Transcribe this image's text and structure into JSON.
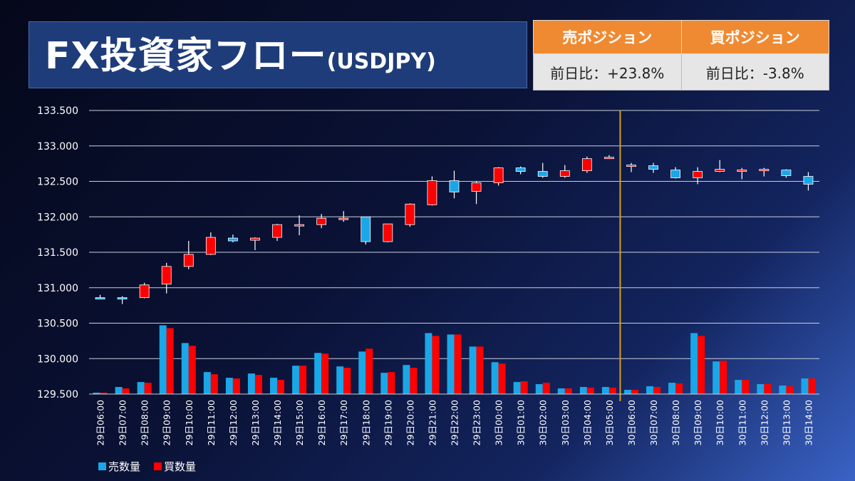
{
  "header": {
    "title": "FX投資家フロー",
    "pair": "(USDJPY)"
  },
  "positions": {
    "sell_header": "売ポジション",
    "buy_header": "買ポジション",
    "sell_change": "前日比：+23.8%",
    "buy_change": "前日比：-3.8%"
  },
  "colors": {
    "up": "#ff0000",
    "down": "#1aa7e8",
    "sell_bar": "#1aa7e8",
    "buy_bar": "#ff0000",
    "header_orange": "#f08a32",
    "divider": "#d4a017"
  },
  "chart_data": {
    "type": "candlestick_with_bars",
    "ylim": [
      129.5,
      133.5
    ],
    "yticks": [
      "133.500",
      "133.000",
      "132.500",
      "132.000",
      "131.500",
      "131.000",
      "130.500",
      "130.000",
      "129.500"
    ],
    "ytick_values": [
      133.5,
      133.0,
      132.5,
      132.0,
      131.5,
      131.0,
      130.5,
      130.0,
      129.5
    ],
    "grid": true,
    "divider_after": "30日05:00",
    "legend": {
      "position": "bottom-left",
      "sell_label": "売数量",
      "buy_label": "買数量"
    },
    "candles": [
      {
        "x": "29日06:00",
        "o": 130.86,
        "h": 130.9,
        "l": 130.84,
        "c": 130.85
      },
      {
        "x": "29日07:00",
        "o": 130.86,
        "h": 130.88,
        "l": 130.77,
        "c": 130.85
      },
      {
        "x": "29日08:00",
        "o": 130.86,
        "h": 131.07,
        "l": 130.85,
        "c": 131.04
      },
      {
        "x": "29日09:00",
        "o": 131.05,
        "h": 131.35,
        "l": 130.92,
        "c": 131.3
      },
      {
        "x": "29日10:00",
        "o": 131.3,
        "h": 131.66,
        "l": 131.26,
        "c": 131.47
      },
      {
        "x": "29日11:00",
        "o": 131.47,
        "h": 131.78,
        "l": 131.46,
        "c": 131.71
      },
      {
        "x": "29日12:00",
        "o": 131.7,
        "h": 131.75,
        "l": 131.64,
        "c": 131.66
      },
      {
        "x": "29日13:00",
        "o": 131.67,
        "h": 131.71,
        "l": 131.53,
        "c": 131.7
      },
      {
        "x": "29日14:00",
        "o": 131.71,
        "h": 131.9,
        "l": 131.66,
        "c": 131.89
      },
      {
        "x": "29日15:00",
        "o": 131.89,
        "h": 132.02,
        "l": 131.74,
        "c": 131.89
      },
      {
        "x": "29日16:00",
        "o": 131.89,
        "h": 132.04,
        "l": 131.84,
        "c": 131.98
      },
      {
        "x": "29日17:00",
        "o": 131.96,
        "h": 132.08,
        "l": 131.93,
        "c": 131.98
      },
      {
        "x": "29日18:00",
        "o": 132.0,
        "h": 132.0,
        "l": 131.61,
        "c": 131.65
      },
      {
        "x": "29日19:00",
        "o": 131.65,
        "h": 131.9,
        "l": 131.64,
        "c": 131.9
      },
      {
        "x": "29日20:00",
        "o": 131.89,
        "h": 132.19,
        "l": 131.86,
        "c": 132.18
      },
      {
        "x": "29日21:00",
        "o": 132.17,
        "h": 132.57,
        "l": 132.16,
        "c": 132.51
      },
      {
        "x": "29日22:00",
        "o": 132.51,
        "h": 132.65,
        "l": 132.26,
        "c": 132.35
      },
      {
        "x": "29日23:00",
        "o": 132.36,
        "h": 132.5,
        "l": 132.18,
        "c": 132.48
      },
      {
        "x": "30日00:00",
        "o": 132.48,
        "h": 132.7,
        "l": 132.44,
        "c": 132.69
      },
      {
        "x": "30日01:00",
        "o": 132.69,
        "h": 132.71,
        "l": 132.6,
        "c": 132.64
      },
      {
        "x": "30日02:00",
        "o": 132.64,
        "h": 132.76,
        "l": 132.55,
        "c": 132.57
      },
      {
        "x": "30日03:00",
        "o": 132.57,
        "h": 132.73,
        "l": 132.55,
        "c": 132.65
      },
      {
        "x": "30日04:00",
        "o": 132.65,
        "h": 132.85,
        "l": 132.62,
        "c": 132.82
      },
      {
        "x": "30日05:00",
        "o": 132.82,
        "h": 132.87,
        "l": 132.82,
        "c": 132.84
      },
      {
        "x": "30日06:00",
        "o": 132.71,
        "h": 132.76,
        "l": 132.63,
        "c": 132.73
      },
      {
        "x": "30日07:00",
        "o": 132.72,
        "h": 132.76,
        "l": 132.62,
        "c": 132.67
      },
      {
        "x": "30日08:00",
        "o": 132.66,
        "h": 132.7,
        "l": 132.54,
        "c": 132.55
      },
      {
        "x": "30日09:00",
        "o": 132.55,
        "h": 132.7,
        "l": 132.46,
        "c": 132.64
      },
      {
        "x": "30日10:00",
        "o": 132.64,
        "h": 132.8,
        "l": 132.63,
        "c": 132.67
      },
      {
        "x": "30日11:00",
        "o": 132.66,
        "h": 132.69,
        "l": 132.53,
        "c": 132.66
      },
      {
        "x": "30日12:00",
        "o": 132.65,
        "h": 132.69,
        "l": 132.57,
        "c": 132.67
      },
      {
        "x": "30日13:00",
        "o": 132.66,
        "h": 132.67,
        "l": 132.55,
        "c": 132.58
      },
      {
        "x": "30日14:00",
        "o": 132.57,
        "h": 132.63,
        "l": 132.37,
        "c": 132.46
      }
    ],
    "sell_volume": [
      129.52,
      129.6,
      129.67,
      130.47,
      130.22,
      129.81,
      129.73,
      129.79,
      129.73,
      129.9,
      130.08,
      129.89,
      130.1,
      129.8,
      129.91,
      130.36,
      130.34,
      130.17,
      129.95,
      129.67,
      129.64,
      129.58,
      129.6,
      129.6,
      129.56,
      129.61,
      129.66,
      130.36,
      129.96,
      129.7,
      129.64,
      129.62,
      129.72
    ],
    "buy_volume": [
      129.52,
      129.58,
      129.66,
      130.43,
      130.18,
      129.78,
      129.72,
      129.77,
      129.7,
      129.9,
      130.07,
      129.87,
      130.14,
      129.81,
      129.87,
      130.32,
      130.34,
      130.17,
      129.93,
      129.68,
      129.66,
      129.58,
      129.59,
      129.59,
      129.56,
      129.6,
      129.65,
      130.32,
      129.97,
      129.7,
      129.64,
      129.61,
      129.72
    ]
  }
}
